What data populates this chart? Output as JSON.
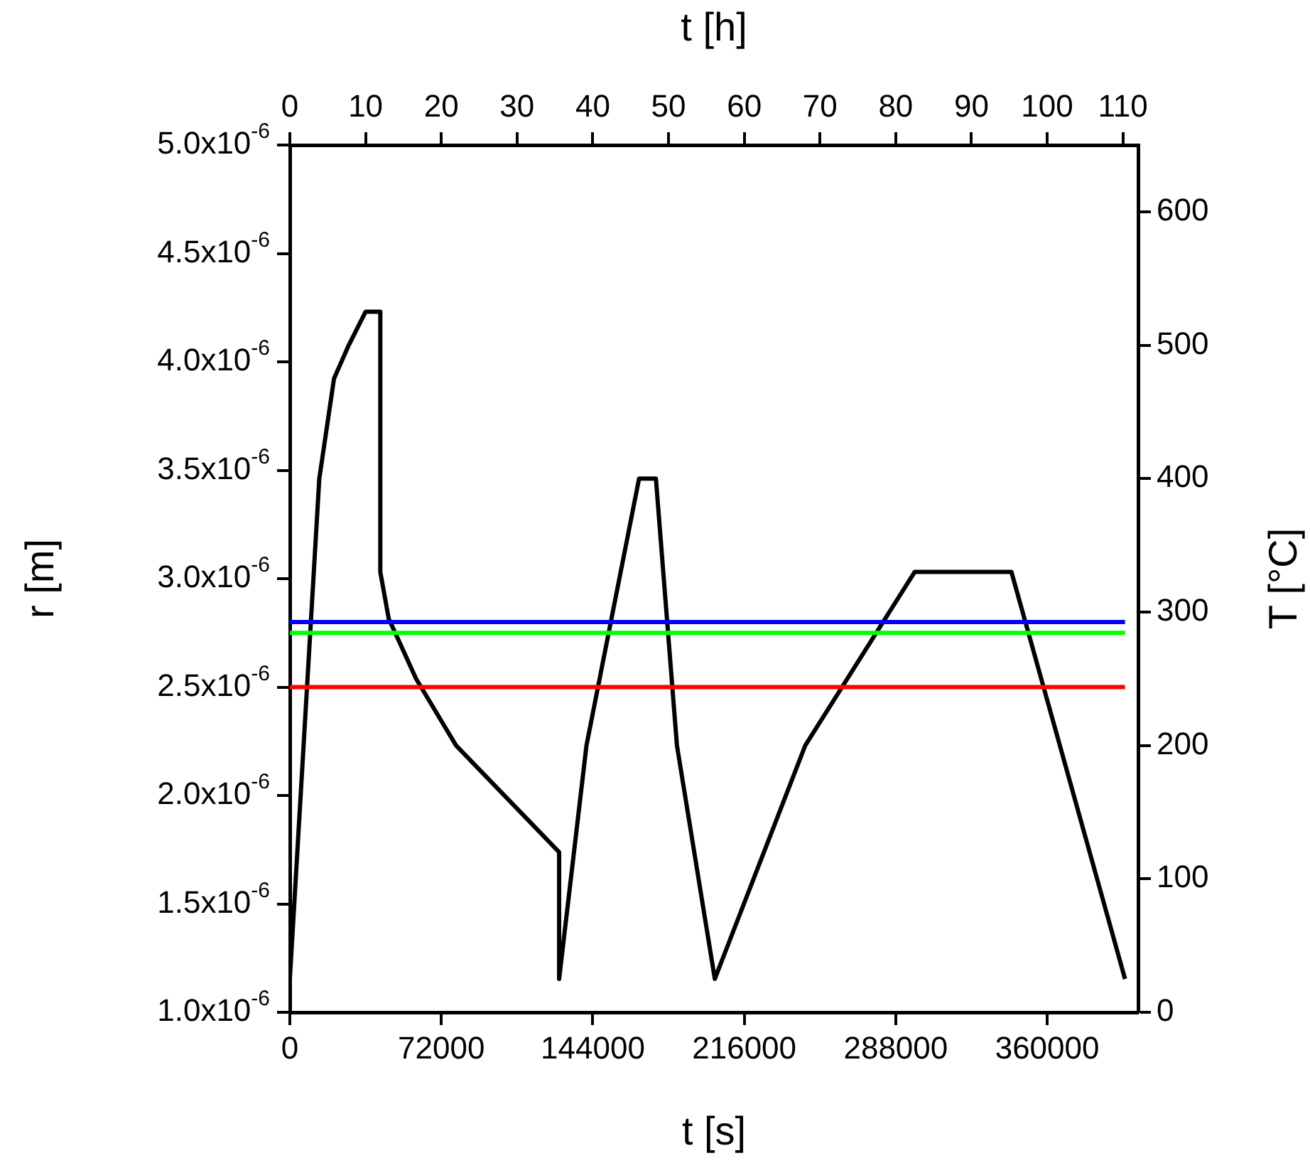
{
  "chart_data": {
    "type": "line",
    "xlabel": "t [s]",
    "x2label": "t [h]",
    "ylabel": "r [m]",
    "y2label": "T [°C]",
    "xlim": [
      0,
      403200
    ],
    "xticks": [
      0,
      72000,
      144000,
      216000,
      288000,
      360000
    ],
    "x2lim": [
      0,
      112
    ],
    "x2ticks": [
      0,
      10,
      20,
      30,
      40,
      50,
      60,
      70,
      80,
      90,
      100,
      110
    ],
    "ylim": [
      1e-06,
      5e-06
    ],
    "yticks": [
      {
        "value": 1e-06,
        "label": "1.0x10$^{-6}$"
      },
      {
        "value": 1.5e-06,
        "label": "1.5x10$^{-6}$"
      },
      {
        "value": 2e-06,
        "label": "2.0x10$^{-6}$"
      },
      {
        "value": 2.5e-06,
        "label": "2.5x10$^{-6}$"
      },
      {
        "value": 3e-06,
        "label": "3.0x10$^{-6}$"
      },
      {
        "value": 3.5e-06,
        "label": "3.5x10$^{-6}$"
      },
      {
        "value": 4e-06,
        "label": "4.0x10$^{-6}$"
      },
      {
        "value": 4.5e-06,
        "label": "4.5x10$^{-6}$"
      },
      {
        "value": 5e-06,
        "label": "5.0x10$^{-6}$"
      }
    ],
    "y2lim": [
      0,
      650
    ],
    "y2ticks": [
      0,
      100,
      200,
      300,
      400,
      500,
      600
    ],
    "grid": false,
    "legend": false,
    "series": [
      {
        "color": "#0000ff",
        "x": [
          0,
          397000
        ],
        "values": [
          2.8e-06,
          2.8e-06
        ]
      },
      {
        "color": "#00ff00",
        "x": [
          0,
          397000
        ],
        "values": [
          2.75e-06,
          2.75e-06
        ]
      },
      {
        "color": "#ff0000",
        "x": [
          0,
          397000
        ],
        "values": [
          2.5e-06,
          2.5e-06
        ]
      },
      {
        "color": "#000000",
        "axis": "y2",
        "x": [
          0,
          14000,
          21000,
          28000,
          36000,
          43000,
          43000,
          47000,
          60000,
          79000,
          128000,
          128000,
          141000,
          166000,
          174000,
          184000,
          202000,
          245000,
          297000,
          343000,
          397000
        ],
        "values": [
          25,
          400,
          475,
          500,
          525,
          525,
          330,
          295,
          250,
          200,
          120,
          25,
          200,
          400,
          400,
          200,
          25,
          200,
          330,
          330,
          25
        ]
      }
    ]
  }
}
